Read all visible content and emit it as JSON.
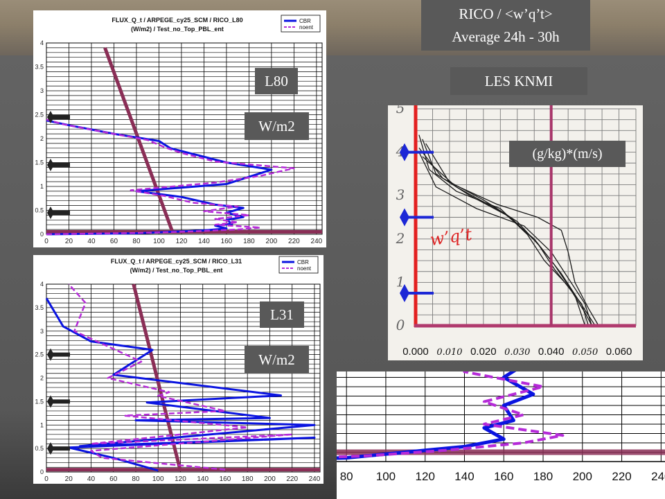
{
  "header": {
    "title_line1": "RICO / <w’q’t>",
    "title_line2": "Average  24h - 30h",
    "les_label": "LES KNMI"
  },
  "labels": {
    "l80": "L80",
    "l31": "L31",
    "units_top": "W/m2",
    "units_bottom": "W/m2",
    "les_units": "(g/kg)*(m/s)",
    "les_handwritten": "w’q’t"
  },
  "colors": {
    "cbr": "#0a14e0",
    "noent": "#b52ad8",
    "reference": "#8a2e56",
    "les_axis": "#e32020",
    "les_line": "#a8356a",
    "arrow": "#222222"
  },
  "chart_data": [
    {
      "id": "l80",
      "type": "line",
      "title": "FLUX_Q_t / ARPEGE_cy25_SCM / RICO_L80",
      "subtitle": "(W/m2) / Test_no_Top_PBL_ent",
      "xlim": [
        0,
        245
      ],
      "ylim": [
        0,
        4
      ],
      "xticks": [
        0,
        20,
        40,
        60,
        80,
        100,
        120,
        140,
        160,
        180,
        200,
        220,
        240
      ],
      "yticks": [
        0,
        0.5,
        1,
        1.5,
        2,
        2.5,
        3,
        3.5,
        4
      ],
      "legend": [
        "CBR",
        "noent"
      ],
      "grid": true,
      "series": [
        {
          "name": "CBR",
          "x": [
            0,
            80,
            110,
            140,
            160,
            150,
            165,
            160,
            175,
            160,
            175,
            150,
            120,
            80,
            160,
            180,
            200,
            160,
            130,
            110,
            100,
            60,
            20,
            0
          ],
          "y": [
            0,
            0.02,
            0.05,
            0.08,
            0.12,
            0.18,
            0.22,
            0.3,
            0.36,
            0.45,
            0.55,
            0.62,
            0.78,
            0.9,
            1.05,
            1.2,
            1.35,
            1.5,
            1.68,
            1.8,
            1.95,
            2.1,
            2.28,
            2.38
          ]
        },
        {
          "name": "noent",
          "x": [
            0,
            90,
            130,
            170,
            190,
            150,
            170,
            150,
            180,
            140,
            170,
            130,
            105,
            75,
            150,
            190,
            220,
            150,
            120,
            105,
            90,
            55,
            15,
            0
          ],
          "y": [
            0,
            0.03,
            0.06,
            0.1,
            0.14,
            0.2,
            0.25,
            0.32,
            0.4,
            0.48,
            0.58,
            0.66,
            0.8,
            0.92,
            1.08,
            1.22,
            1.38,
            1.52,
            1.7,
            1.82,
            1.97,
            2.12,
            2.3,
            2.4
          ]
        }
      ],
      "reference": {
        "x": [
          52,
          112
        ],
        "y": [
          3.9,
          0.05
        ]
      }
    },
    {
      "id": "l31",
      "type": "line",
      "title": "FLUX_Q_t / ARPEGE_cy25_SCM / RICO_L31",
      "subtitle": "(W/m2) / Test_no_Top_PBL_ent",
      "xlim": [
        0,
        245
      ],
      "ylim": [
        0,
        4
      ],
      "xticks": [
        0,
        20,
        40,
        60,
        80,
        100,
        120,
        140,
        160,
        180,
        200,
        220,
        240
      ],
      "yticks": [
        0,
        0.5,
        1,
        1.5,
        2,
        2.5,
        3,
        3.5,
        4
      ],
      "legend": [
        "CBR",
        "noent"
      ],
      "grid": true,
      "series": [
        {
          "name": "CBR",
          "x": [
            100,
            60,
            20,
            240,
            30,
            240,
            80,
            200,
            90,
            210,
            60,
            95,
            40,
            15,
            0
          ],
          "y": [
            0.03,
            0.3,
            0.52,
            0.73,
            0.55,
            1.0,
            1.1,
            1.15,
            1.48,
            1.63,
            2.07,
            2.6,
            2.78,
            3.1,
            3.7
          ]
        },
        {
          "name": "noent",
          "x": [
            160,
            50,
            40,
            220,
            40,
            180,
            70,
            160,
            100,
            110,
            55,
            85,
            25,
            35,
            20
          ],
          "y": [
            0.05,
            0.3,
            0.45,
            0.8,
            0.6,
            0.95,
            1.2,
            1.3,
            1.62,
            1.7,
            2.0,
            2.35,
            3.0,
            3.6,
            4.0
          ]
        }
      ],
      "reference": {
        "x": [
          78,
          120
        ],
        "y": [
          4.0,
          0.02
        ]
      }
    },
    {
      "id": "l80-zoom",
      "type": "line",
      "xlim": [
        75,
        242
      ],
      "xticks": [
        80,
        100,
        120,
        140,
        160,
        180,
        200,
        220,
        240
      ]
    },
    {
      "id": "les-knmi",
      "type": "line",
      "xlim": [
        0,
        0.065
      ],
      "ylim": [
        0,
        5
      ],
      "xticks": [
        "0.000",
        "0.010",
        "0.020",
        "0.030",
        "0.040",
        "0.050",
        "0.060"
      ],
      "yticks": [
        "0",
        "1",
        "2",
        "3",
        "4",
        "5"
      ],
      "grid": true
    }
  ]
}
